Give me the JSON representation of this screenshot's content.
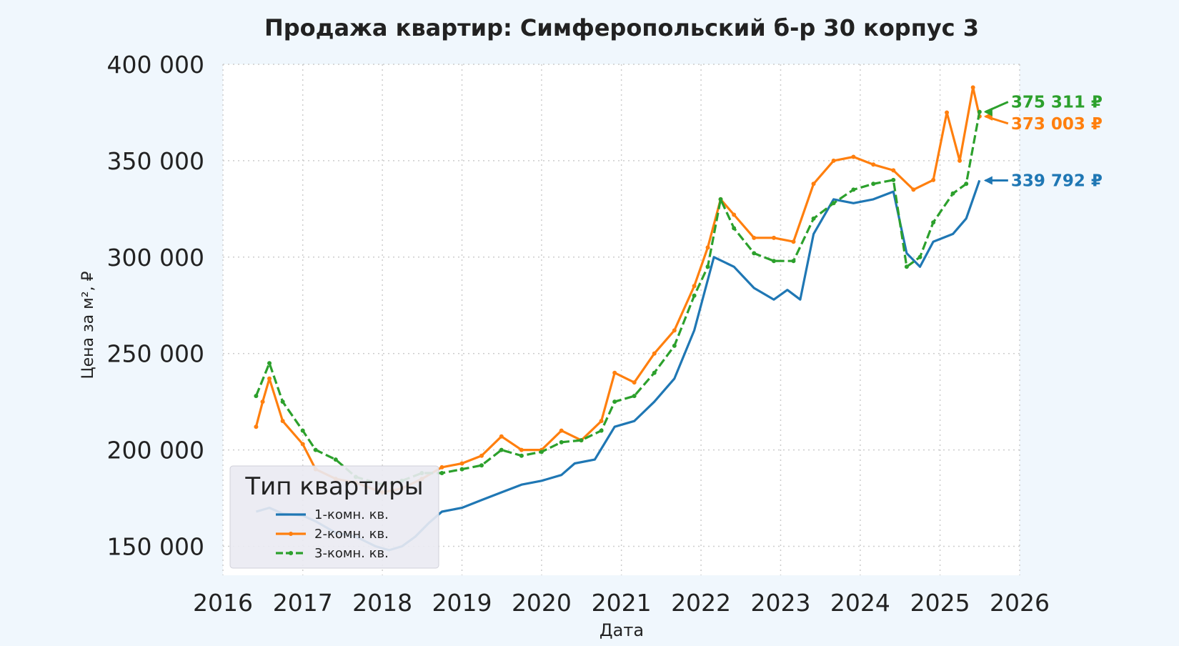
{
  "chart_data": {
    "type": "line",
    "title": "Продажа квартир: Симферопольский б-р 30 корпус 3",
    "xlabel": "Дата",
    "ylabel": "Цена за м², ₽",
    "xlim": [
      "2016-01-01",
      "2026-01-01"
    ],
    "ylim": [
      135000,
      400000
    ],
    "x_ticks": [
      "2016",
      "2017",
      "2018",
      "2019",
      "2020",
      "2021",
      "2022",
      "2023",
      "2024",
      "2025",
      "2026"
    ],
    "y_ticks": [
      {
        "value": 150000,
        "label": "150 000"
      },
      {
        "value": 200000,
        "label": "200 000"
      },
      {
        "value": 250000,
        "label": "250 000"
      },
      {
        "value": 300000,
        "label": "300 000"
      },
      {
        "value": 350000,
        "label": "350 000"
      },
      {
        "value": 400000,
        "label": "400 000"
      }
    ],
    "grid": true,
    "legend": {
      "title": "Тип квартиры",
      "position": "bottom-left"
    },
    "series": [
      {
        "name": "1-комн. кв.",
        "color": "#1f77b4",
        "style": "solid",
        "last_label": "339 792 ₽",
        "last_value": 339792,
        "points": [
          [
            "2016-06-01",
            168000
          ],
          [
            "2016-08-01",
            170000
          ],
          [
            "2016-10-01",
            167000
          ],
          [
            "2017-01-01",
            166000
          ],
          [
            "2017-03-01",
            163000
          ],
          [
            "2017-06-01",
            157000
          ],
          [
            "2017-09-01",
            155000
          ],
          [
            "2017-12-01",
            150000
          ],
          [
            "2018-02-01",
            148000
          ],
          [
            "2018-04-01",
            150000
          ],
          [
            "2018-06-01",
            155000
          ],
          [
            "2018-08-01",
            162000
          ],
          [
            "2018-10-01",
            168000
          ],
          [
            "2019-01-01",
            170000
          ],
          [
            "2019-04-01",
            174000
          ],
          [
            "2019-07-01",
            178000
          ],
          [
            "2019-10-01",
            182000
          ],
          [
            "2020-01-01",
            184000
          ],
          [
            "2020-04-01",
            187000
          ],
          [
            "2020-06-01",
            193000
          ],
          [
            "2020-09-01",
            195000
          ],
          [
            "2020-12-01",
            212000
          ],
          [
            "2021-03-01",
            215000
          ],
          [
            "2021-06-01",
            225000
          ],
          [
            "2021-09-01",
            237000
          ],
          [
            "2021-12-01",
            262000
          ],
          [
            "2022-03-01",
            300000
          ],
          [
            "2022-06-01",
            295000
          ],
          [
            "2022-09-01",
            284000
          ],
          [
            "2022-12-01",
            278000
          ],
          [
            "2023-02-01",
            283000
          ],
          [
            "2023-04-01",
            278000
          ],
          [
            "2023-06-01",
            312000
          ],
          [
            "2023-09-01",
            330000
          ],
          [
            "2023-12-01",
            328000
          ],
          [
            "2024-03-01",
            330000
          ],
          [
            "2024-06-01",
            334000
          ],
          [
            "2024-08-01",
            302000
          ],
          [
            "2024-10-01",
            295000
          ],
          [
            "2024-12-01",
            308000
          ],
          [
            "2025-03-01",
            312000
          ],
          [
            "2025-05-01",
            320000
          ],
          [
            "2025-07-01",
            339792
          ]
        ]
      },
      {
        "name": "2-комн. кв.",
        "color": "#ff7f0e",
        "style": "solid-marker",
        "last_label": "373 003 ₽",
        "last_value": 373003,
        "points": [
          [
            "2016-06-01",
            212000
          ],
          [
            "2016-07-01",
            225000
          ],
          [
            "2016-08-01",
            237000
          ],
          [
            "2016-10-01",
            215000
          ],
          [
            "2017-01-01",
            203000
          ],
          [
            "2017-03-01",
            190000
          ],
          [
            "2017-06-01",
            185000
          ],
          [
            "2017-09-01",
            183000
          ],
          [
            "2018-01-01",
            178000
          ],
          [
            "2018-04-01",
            180000
          ],
          [
            "2018-07-01",
            185000
          ],
          [
            "2018-10-01",
            191000
          ],
          [
            "2019-01-01",
            193000
          ],
          [
            "2019-04-01",
            197000
          ],
          [
            "2019-07-01",
            207000
          ],
          [
            "2019-10-01",
            200000
          ],
          [
            "2020-01-01",
            200000
          ],
          [
            "2020-04-01",
            210000
          ],
          [
            "2020-07-01",
            205000
          ],
          [
            "2020-10-01",
            215000
          ],
          [
            "2020-12-01",
            240000
          ],
          [
            "2021-03-01",
            235000
          ],
          [
            "2021-06-01",
            250000
          ],
          [
            "2021-09-01",
            262000
          ],
          [
            "2021-12-01",
            285000
          ],
          [
            "2022-02-01",
            305000
          ],
          [
            "2022-04-01",
            330000
          ],
          [
            "2022-06-01",
            322000
          ],
          [
            "2022-09-01",
            310000
          ],
          [
            "2022-12-01",
            310000
          ],
          [
            "2023-03-01",
            308000
          ],
          [
            "2023-06-01",
            338000
          ],
          [
            "2023-09-01",
            350000
          ],
          [
            "2023-12-01",
            352000
          ],
          [
            "2024-03-01",
            348000
          ],
          [
            "2024-06-01",
            345000
          ],
          [
            "2024-09-01",
            335000
          ],
          [
            "2024-12-01",
            340000
          ],
          [
            "2025-02-01",
            375000
          ],
          [
            "2025-04-01",
            350000
          ],
          [
            "2025-06-01",
            388000
          ],
          [
            "2025-07-01",
            373003
          ]
        ]
      },
      {
        "name": "3-комн. кв.",
        "color": "#2ca02c",
        "style": "dashed-marker",
        "last_label": "375 311 ₽",
        "last_value": 375311,
        "points": [
          [
            "2016-06-01",
            228000
          ],
          [
            "2016-08-01",
            245000
          ],
          [
            "2016-10-01",
            225000
          ],
          [
            "2017-01-01",
            210000
          ],
          [
            "2017-03-01",
            200000
          ],
          [
            "2017-06-01",
            195000
          ],
          [
            "2017-09-01",
            186000
          ],
          [
            "2018-01-01",
            182000
          ],
          [
            "2018-04-01",
            184000
          ],
          [
            "2018-07-01",
            188000
          ],
          [
            "2018-10-01",
            188000
          ],
          [
            "2019-01-01",
            190000
          ],
          [
            "2019-04-01",
            192000
          ],
          [
            "2019-07-01",
            200000
          ],
          [
            "2019-10-01",
            197000
          ],
          [
            "2020-01-01",
            199000
          ],
          [
            "2020-04-01",
            204000
          ],
          [
            "2020-07-01",
            205000
          ],
          [
            "2020-10-01",
            210000
          ],
          [
            "2020-12-01",
            225000
          ],
          [
            "2021-03-01",
            228000
          ],
          [
            "2021-06-01",
            240000
          ],
          [
            "2021-09-01",
            254000
          ],
          [
            "2021-12-01",
            280000
          ],
          [
            "2022-02-01",
            295000
          ],
          [
            "2022-04-01",
            330000
          ],
          [
            "2022-06-01",
            315000
          ],
          [
            "2022-09-01",
            302000
          ],
          [
            "2022-12-01",
            298000
          ],
          [
            "2023-03-01",
            298000
          ],
          [
            "2023-06-01",
            320000
          ],
          [
            "2023-09-01",
            328000
          ],
          [
            "2023-12-01",
            335000
          ],
          [
            "2024-03-01",
            338000
          ],
          [
            "2024-06-01",
            340000
          ],
          [
            "2024-08-01",
            295000
          ],
          [
            "2024-10-01",
            300000
          ],
          [
            "2024-12-01",
            318000
          ],
          [
            "2025-03-01",
            333000
          ],
          [
            "2025-05-01",
            338000
          ],
          [
            "2025-07-01",
            375311
          ]
        ]
      }
    ]
  }
}
